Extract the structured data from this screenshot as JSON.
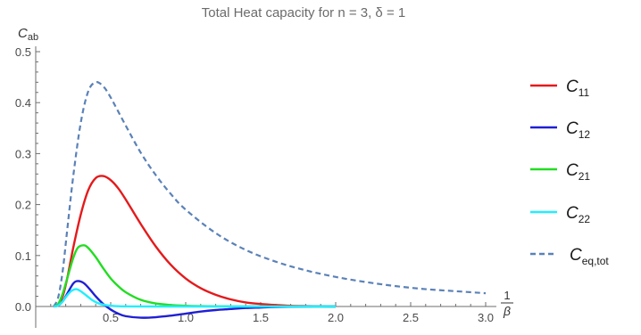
{
  "chart_data": {
    "type": "line",
    "title": "Total Heat capacity for n = 3, δ = 1",
    "ylabel": {
      "main": "C",
      "sub": "ab"
    },
    "xlabel": {
      "num": "1",
      "den": "β"
    },
    "xlim": [
      0,
      3.05
    ],
    "ylim": [
      -0.04,
      0.5
    ],
    "xticks": [
      "0.5",
      "1.0",
      "1.5",
      "2.0",
      "2.5",
      "3.0"
    ],
    "xtick_values": [
      0.5,
      1.0,
      1.5,
      2.0,
      2.5,
      3.0
    ],
    "yticks": [
      "0.0",
      "0.1",
      "0.2",
      "0.3",
      "0.4",
      "0.5"
    ],
    "ytick_values": [
      0.0,
      0.1,
      0.2,
      0.3,
      0.4,
      0.5
    ],
    "grid": false,
    "legend_position": "right",
    "series": [
      {
        "name": "C11",
        "label_main": "C",
        "label_sub": "11",
        "color": "#e41a1c",
        "dash": "solid",
        "x": [
          0.12,
          0.15,
          0.18,
          0.21,
          0.25,
          0.3,
          0.35,
          0.4,
          0.45,
          0.5,
          0.55,
          0.6,
          0.7,
          0.8,
          0.9,
          1.0,
          1.1,
          1.2,
          1.3,
          1.4,
          1.5,
          1.6,
          1.7,
          1.8,
          1.9,
          2.0
        ],
        "y": [
          0.0,
          0.004,
          0.02,
          0.055,
          0.115,
          0.18,
          0.228,
          0.252,
          0.256,
          0.248,
          0.232,
          0.21,
          0.162,
          0.118,
          0.082,
          0.055,
          0.036,
          0.023,
          0.014,
          0.008,
          0.005,
          0.003,
          0.0015,
          0.0008,
          0.0003,
          0.0
        ]
      },
      {
        "name": "C12",
        "label_main": "C",
        "label_sub": "12",
        "color": "#1f1fd6",
        "dash": "solid",
        "x": [
          0.12,
          0.15,
          0.18,
          0.21,
          0.25,
          0.28,
          0.32,
          0.36,
          0.4,
          0.45,
          0.5,
          0.55,
          0.6,
          0.7,
          0.8,
          0.9,
          1.0,
          1.1,
          1.2,
          1.3,
          1.4,
          1.5,
          1.6,
          1.8,
          2.0
        ],
        "y": [
          0.0,
          0.002,
          0.01,
          0.025,
          0.045,
          0.05,
          0.046,
          0.034,
          0.02,
          0.005,
          -0.006,
          -0.014,
          -0.019,
          -0.022,
          -0.021,
          -0.018,
          -0.014,
          -0.01,
          -0.007,
          -0.005,
          -0.003,
          -0.002,
          -0.001,
          0.0,
          0.0
        ]
      },
      {
        "name": "C21",
        "label_main": "C",
        "label_sub": "21",
        "color": "#22dd22",
        "dash": "solid",
        "x": [
          0.12,
          0.15,
          0.18,
          0.21,
          0.25,
          0.28,
          0.32,
          0.35,
          0.4,
          0.45,
          0.5,
          0.55,
          0.6,
          0.7,
          0.8,
          0.9,
          1.0,
          1.1,
          1.2,
          1.3,
          1.5,
          2.0
        ],
        "y": [
          0.0,
          0.005,
          0.025,
          0.055,
          0.095,
          0.115,
          0.12,
          0.115,
          0.097,
          0.075,
          0.055,
          0.04,
          0.028,
          0.013,
          0.006,
          0.003,
          0.0015,
          0.0008,
          0.0004,
          0.0002,
          0.0,
          0.0
        ]
      },
      {
        "name": "C22",
        "label_main": "C",
        "label_sub": "22",
        "color": "#22eeff",
        "dash": "solid",
        "x": [
          0.12,
          0.15,
          0.18,
          0.21,
          0.24,
          0.27,
          0.3,
          0.34,
          0.38,
          0.42,
          0.48,
          0.55,
          0.65,
          0.8,
          1.0,
          1.5,
          2.0
        ],
        "y": [
          0.0,
          0.002,
          0.01,
          0.022,
          0.031,
          0.034,
          0.03,
          0.021,
          0.012,
          0.006,
          0.002,
          0.0005,
          0.0001,
          0.0,
          0.0,
          0.0,
          0.0
        ]
      },
      {
        "name": "Ceq,tot",
        "label_main": "C",
        "label_sub": "eq,tot",
        "color": "#5b82b8",
        "dash": "dashed",
        "x": [
          0.12,
          0.15,
          0.18,
          0.21,
          0.25,
          0.3,
          0.35,
          0.4,
          0.45,
          0.5,
          0.6,
          0.7,
          0.8,
          0.9,
          1.0,
          1.2,
          1.4,
          1.6,
          1.8,
          2.0,
          2.2,
          2.4,
          2.6,
          2.8,
          3.0
        ],
        "y": [
          0.0,
          0.018,
          0.07,
          0.15,
          0.255,
          0.36,
          0.422,
          0.44,
          0.432,
          0.41,
          0.355,
          0.302,
          0.258,
          0.221,
          0.19,
          0.144,
          0.111,
          0.088,
          0.071,
          0.058,
          0.048,
          0.04,
          0.034,
          0.03,
          0.026
        ]
      }
    ]
  }
}
